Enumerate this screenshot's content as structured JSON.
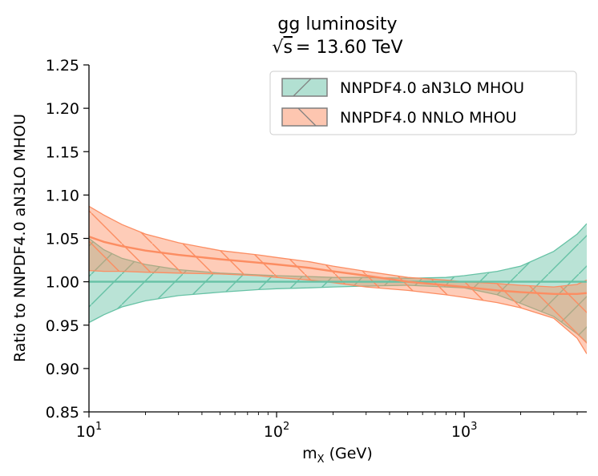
{
  "chart_data": {
    "type": "area",
    "title": "gg luminosity",
    "subtitle": "√s = 13.60 TeV",
    "subtitle_sqrt": "√",
    "subtitle_s": "s",
    "subtitle_rest": "= 13.60 TeV",
    "xlabel": "m",
    "xlabel_sub": "X",
    "xlabel_unit": "(GeV)",
    "ylabel": "Ratio to NNPDF4.0 aN3LO MHOU",
    "xscale": "log",
    "xlim": [
      10,
      4500
    ],
    "ylim": [
      0.85,
      1.25
    ],
    "yticks": [
      "0.85",
      "0.90",
      "0.95",
      "1.00",
      "1.05",
      "1.10",
      "1.15",
      "1.20",
      "1.25"
    ],
    "xticks_major": [
      {
        "value": 10,
        "base": "10",
        "exp": "1"
      },
      {
        "value": 100,
        "base": "10",
        "exp": "2"
      },
      {
        "value": 1000,
        "base": "10",
        "exp": "3"
      }
    ],
    "legend_position": "top-right",
    "series": [
      {
        "name": "NNPDF4.0 aN3LO MHOU",
        "color": "#66c2a5",
        "fill": "#66c2a5",
        "hatch": "/",
        "x": [
          10,
          12,
          15,
          20,
          30,
          50,
          80,
          100,
          150,
          200,
          300,
          500,
          800,
          1000,
          1500,
          2000,
          3000,
          4000,
          4500
        ],
        "central": [
          1.0,
          1.0,
          1.0,
          1.0,
          1.0,
          1.0,
          1.0,
          1.0,
          1.0,
          1.0,
          1.0,
          1.0,
          1.0,
          1.0,
          1.0,
          1.0,
          1.0,
          1.0,
          1.0
        ],
        "upper": [
          1.05,
          1.037,
          1.027,
          1.02,
          1.014,
          1.01,
          1.008,
          1.007,
          1.006,
          1.005,
          1.005,
          1.004,
          1.005,
          1.007,
          1.012,
          1.018,
          1.035,
          1.055,
          1.067
        ],
        "lower": [
          0.953,
          0.962,
          0.971,
          0.978,
          0.984,
          0.988,
          0.991,
          0.992,
          0.993,
          0.994,
          0.995,
          0.996,
          0.994,
          0.993,
          0.985,
          0.975,
          0.96,
          0.94,
          0.93
        ]
      },
      {
        "name": "NNPDF4.0 NNLO MHOU",
        "color": "#fc8d62",
        "fill": "#fc8d62",
        "hatch": "\\",
        "x": [
          10,
          12,
          15,
          20,
          30,
          50,
          80,
          100,
          150,
          200,
          300,
          500,
          800,
          1000,
          1500,
          2000,
          3000,
          4000,
          4500
        ],
        "central": [
          1.052,
          1.046,
          1.041,
          1.036,
          1.031,
          1.026,
          1.022,
          1.02,
          1.016,
          1.012,
          1.007,
          1.0,
          0.996,
          0.994,
          0.99,
          0.988,
          0.986,
          0.986,
          0.987
        ],
        "upper": [
          1.087,
          1.077,
          1.066,
          1.055,
          1.045,
          1.036,
          1.031,
          1.028,
          1.023,
          1.018,
          1.012,
          1.005,
          1.002,
          1.0,
          0.998,
          0.996,
          0.994,
          0.997,
          1.002
        ],
        "lower": [
          1.013,
          1.012,
          1.012,
          1.011,
          1.01,
          1.009,
          1.007,
          1.005,
          1.002,
          0.999,
          0.994,
          0.99,
          0.985,
          0.982,
          0.976,
          0.97,
          0.958,
          0.935,
          0.917
        ]
      }
    ]
  }
}
